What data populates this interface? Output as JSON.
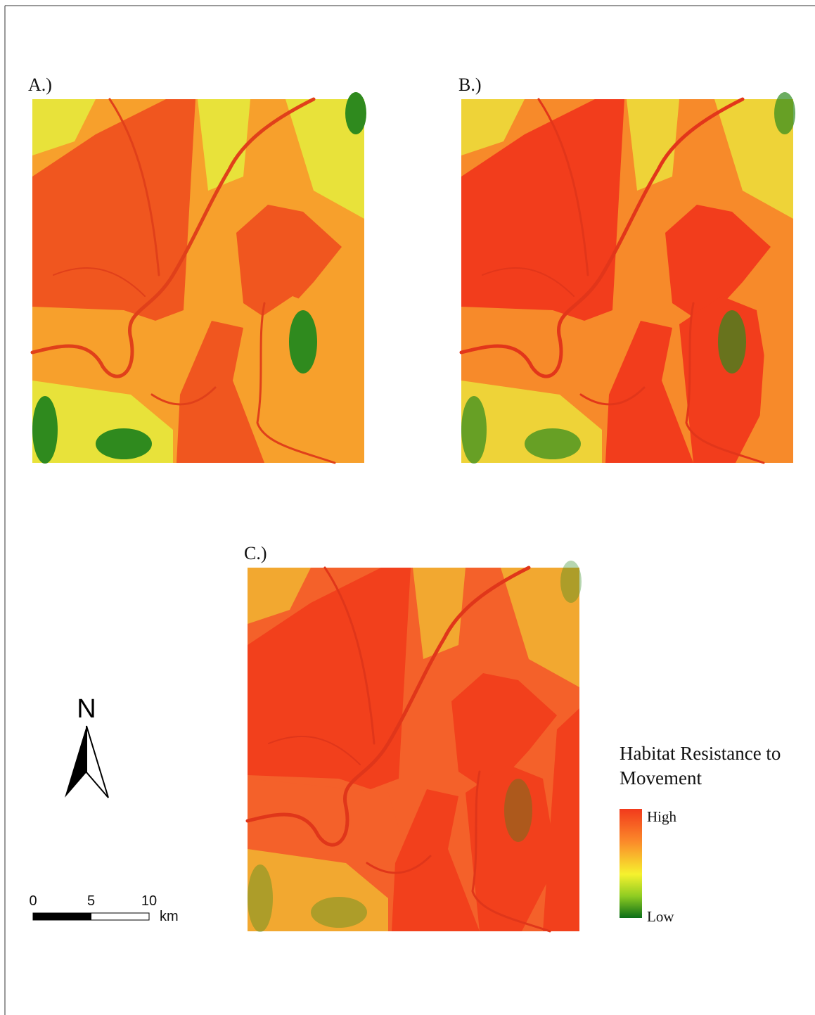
{
  "panels": [
    {
      "label": "A.)"
    },
    {
      "label": "B.)"
    },
    {
      "label": "C.)"
    }
  ],
  "north_arrow": {
    "label": "N"
  },
  "scale_bar": {
    "ticks": [
      0,
      5,
      10
    ],
    "unit": "km"
  },
  "legend": {
    "title": "Habitat Resistance to Movement",
    "high": "High",
    "low": "Low"
  }
}
